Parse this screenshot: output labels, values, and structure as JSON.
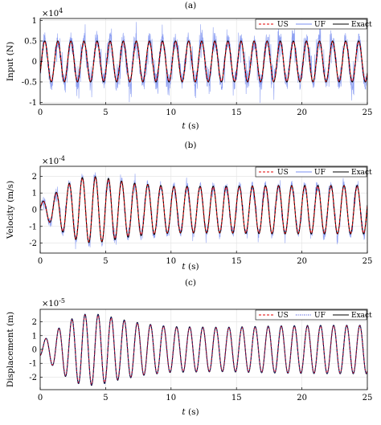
{
  "chart_data": [
    {
      "type": "line",
      "caption": "(a)",
      "xlabel": "t (s)",
      "ylabel": "Input (N)",
      "exponent": "×10^4",
      "xlim": [
        0,
        25
      ],
      "ylim": [
        -1.05,
        1.05
      ],
      "xticks": [
        "0",
        "5",
        "10",
        "15",
        "20",
        "25"
      ],
      "yticks": [
        "-1",
        "-0.5",
        "0",
        "0.5",
        "1"
      ],
      "grid": true,
      "legend_position": "top-right",
      "series": [
        {
          "name": "US",
          "color": "#e00000",
          "style": "dashed",
          "amplitude": 0.5,
          "period_s": 1.0
        },
        {
          "name": "UF",
          "color": "#7a8ff0",
          "style": "solid-noisy",
          "amplitude": 0.5,
          "noise_peak": 1.0
        },
        {
          "name": "Exact",
          "color": "#000000",
          "style": "solid",
          "amplitude": 0.5,
          "period_s": 1.0
        }
      ]
    },
    {
      "type": "line",
      "caption": "(b)",
      "xlabel": "t (s)",
      "ylabel": "Velocity (m/s)",
      "exponent": "×10^-4",
      "xlim": [
        0,
        25
      ],
      "ylim": [
        -2.6,
        2.6
      ],
      "xticks": [
        "0",
        "5",
        "10",
        "15",
        "20",
        "25"
      ],
      "yticks": [
        "-2",
        "-1",
        "0",
        "1",
        "2"
      ],
      "grid": true,
      "legend_position": "top-right",
      "series": [
        {
          "name": "US",
          "color": "#e00000",
          "style": "dashed"
        },
        {
          "name": "UF",
          "color": "#7a8ff0",
          "style": "solid-noisy"
        },
        {
          "name": "Exact",
          "color": "#000000",
          "style": "solid"
        }
      ],
      "envelope": {
        "t": [
          0,
          1,
          2,
          3,
          4,
          5,
          7,
          10,
          14,
          18,
          22,
          25
        ],
        "amplitude": [
          0.4,
          0.9,
          1.5,
          1.9,
          2.0,
          1.9,
          1.6,
          1.4,
          1.4,
          1.45,
          1.45,
          1.45
        ]
      }
    },
    {
      "type": "line",
      "caption": "(c)",
      "xlabel": "t (s)",
      "ylabel": "Displacement (m)",
      "exponent": "×10^-5",
      "xlim": [
        0,
        25
      ],
      "ylim": [
        -2.9,
        2.9
      ],
      "xticks": [
        "0",
        "5",
        "10",
        "15",
        "20",
        "25"
      ],
      "yticks": [
        "-2",
        "-1",
        "0",
        "1",
        "2"
      ],
      "grid": true,
      "legend_position": "top-right",
      "series": [
        {
          "name": "US",
          "color": "#e00000",
          "style": "dashed"
        },
        {
          "name": "UF",
          "color": "#2030d0",
          "style": "dotted"
        },
        {
          "name": "Exact",
          "color": "#000000",
          "style": "solid"
        }
      ],
      "envelope": {
        "t": [
          0,
          1,
          2,
          3,
          4,
          5,
          6,
          8,
          10,
          14,
          18,
          22,
          25
        ],
        "amplitude": [
          0.5,
          1.2,
          2.0,
          2.5,
          2.6,
          2.45,
          2.2,
          1.85,
          1.65,
          1.6,
          1.7,
          1.75,
          1.75
        ]
      }
    }
  ]
}
